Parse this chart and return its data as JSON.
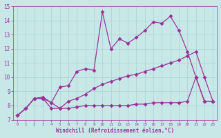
{
  "bg_color": "#c8e8e8",
  "grid_color": "#aacccc",
  "line_color": "#993399",
  "xlim": [
    -0.5,
    23.5
  ],
  "ylim": [
    7,
    15
  ],
  "xlabel": "Windchill (Refroidissement éolien,°C)",
  "series1_x": [
    0,
    1,
    2,
    3,
    4,
    5,
    6,
    7,
    8,
    9,
    10,
    11,
    12,
    13,
    14,
    15,
    16,
    17,
    18,
    19,
    20,
    21,
    22,
    23
  ],
  "series1_y": [
    7.3,
    7.8,
    8.5,
    8.6,
    8.2,
    9.3,
    9.4,
    10.4,
    10.6,
    10.5,
    14.6,
    12.0,
    12.7,
    12.4,
    12.8,
    13.3,
    13.9,
    13.8,
    14.3,
    13.3,
    11.8,
    10.0,
    8.3,
    8.3
  ],
  "series2_x": [
    0,
    1,
    2,
    3,
    4,
    5,
    6,
    7,
    8,
    9,
    10,
    11,
    12,
    13,
    14,
    15,
    16,
    17,
    18,
    19,
    20,
    21,
    22,
    23
  ],
  "series2_y": [
    7.3,
    7.8,
    8.5,
    8.5,
    8.2,
    7.8,
    8.3,
    8.5,
    8.8,
    9.2,
    9.5,
    9.7,
    9.9,
    10.1,
    10.2,
    10.4,
    10.6,
    10.8,
    11.0,
    11.2,
    11.5,
    11.8,
    10.0,
    8.3
  ],
  "series3_x": [
    0,
    1,
    2,
    3,
    4,
    5,
    6,
    7,
    8,
    9,
    10,
    11,
    12,
    13,
    14,
    15,
    16,
    17,
    18,
    19,
    20,
    21,
    22,
    23
  ],
  "series3_y": [
    7.3,
    7.8,
    8.5,
    8.5,
    7.8,
    7.8,
    7.8,
    7.9,
    8.0,
    8.0,
    8.0,
    8.0,
    8.0,
    8.0,
    8.1,
    8.1,
    8.2,
    8.2,
    8.2,
    8.2,
    8.3,
    10.0,
    8.3,
    8.3
  ]
}
